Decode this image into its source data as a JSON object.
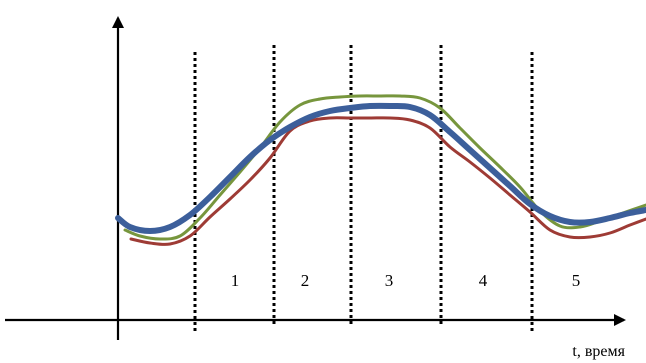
{
  "chart_data": {
    "type": "line",
    "title": "",
    "xlabel": "t, время",
    "ylabel": "",
    "grid": false,
    "legend": "none",
    "phase_labels": [
      "1",
      "2",
      "3",
      "4",
      "5"
    ],
    "series": [
      {
        "color": "#3c5f9b",
        "points": [
          [
            118,
            218
          ],
          [
            130,
            227
          ],
          [
            150,
            231
          ],
          [
            170,
            227
          ],
          [
            190,
            215
          ],
          [
            210,
            197
          ],
          [
            230,
            177
          ],
          [
            250,
            157
          ],
          [
            270,
            140
          ],
          [
            290,
            127
          ],
          [
            310,
            117
          ],
          [
            330,
            111
          ],
          [
            350,
            108
          ],
          [
            370,
            106
          ],
          [
            390,
            106
          ],
          [
            410,
            107
          ],
          [
            430,
            115
          ],
          [
            450,
            132
          ],
          [
            470,
            150
          ],
          [
            490,
            168
          ],
          [
            510,
            186
          ],
          [
            530,
            204
          ],
          [
            550,
            216
          ],
          [
            570,
            222
          ],
          [
            590,
            222
          ],
          [
            610,
            218
          ],
          [
            630,
            213
          ],
          [
            646,
            210
          ]
        ]
      },
      {
        "color": "#77963d",
        "points": [
          [
            125,
            230
          ],
          [
            140,
            236
          ],
          [
            160,
            239
          ],
          [
            180,
            236
          ],
          [
            200,
            218
          ],
          [
            220,
            195
          ],
          [
            240,
            172
          ],
          [
            260,
            148
          ],
          [
            280,
            122
          ],
          [
            300,
            105
          ],
          [
            320,
            99
          ],
          [
            340,
            97
          ],
          [
            360,
            96
          ],
          [
            380,
            96
          ],
          [
            400,
            96
          ],
          [
            420,
            98
          ],
          [
            440,
            108
          ],
          [
            460,
            128
          ],
          [
            480,
            148
          ],
          [
            500,
            167
          ],
          [
            520,
            187
          ],
          [
            540,
            211
          ],
          [
            560,
            226
          ],
          [
            580,
            227
          ],
          [
            600,
            221
          ],
          [
            620,
            214
          ],
          [
            646,
            205
          ]
        ]
      },
      {
        "color": "#9e3b35",
        "points": [
          [
            131,
            239
          ],
          [
            150,
            243
          ],
          [
            170,
            244
          ],
          [
            190,
            236
          ],
          [
            210,
            217
          ],
          [
            230,
            199
          ],
          [
            250,
            180
          ],
          [
            270,
            158
          ],
          [
            290,
            131
          ],
          [
            310,
            121
          ],
          [
            330,
            118
          ],
          [
            350,
            118
          ],
          [
            370,
            118
          ],
          [
            390,
            118
          ],
          [
            410,
            120
          ],
          [
            430,
            128
          ],
          [
            450,
            147
          ],
          [
            470,
            162
          ],
          [
            490,
            178
          ],
          [
            510,
            195
          ],
          [
            530,
            212
          ],
          [
            550,
            230
          ],
          [
            570,
            237
          ],
          [
            590,
            237
          ],
          [
            610,
            233
          ],
          [
            630,
            225
          ],
          [
            646,
            219
          ]
        ]
      }
    ]
  }
}
